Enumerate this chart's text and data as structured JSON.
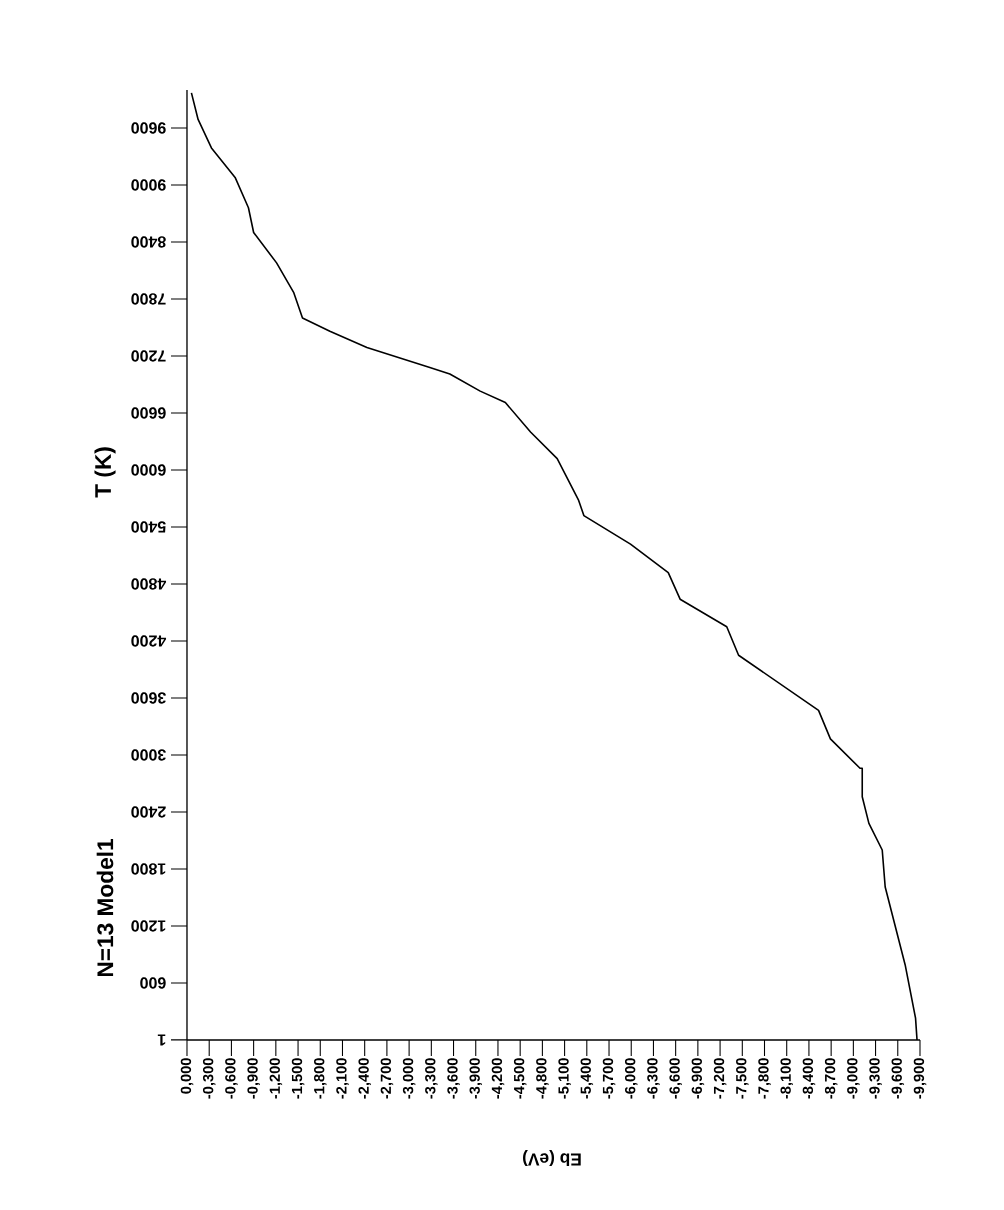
{
  "chart_data": {
    "type": "line",
    "title": "N=13 Model1",
    "xlabel": "Eb (eV)",
    "ylabel": "T (K)",
    "xlim": [
      0,
      -9.9
    ],
    "ylim": [
      0,
      10000
    ],
    "xticks": [
      {
        "value": 0,
        "label": "0,000"
      },
      {
        "value": -0.3,
        "label": "-0,300"
      },
      {
        "value": -0.6,
        "label": "-0,600"
      },
      {
        "value": -0.9,
        "label": "-0,900"
      },
      {
        "value": -1.2,
        "label": "-1,200"
      },
      {
        "value": -1.5,
        "label": "-1,500"
      },
      {
        "value": -1.8,
        "label": "-1,800"
      },
      {
        "value": -2.1,
        "label": "-2,100"
      },
      {
        "value": -2.4,
        "label": "-2,400"
      },
      {
        "value": -2.7,
        "label": "-2,700"
      },
      {
        "value": -3.0,
        "label": "-3,000"
      },
      {
        "value": -3.3,
        "label": "-3,300"
      },
      {
        "value": -3.6,
        "label": "-3,600"
      },
      {
        "value": -3.9,
        "label": "-3,900"
      },
      {
        "value": -4.2,
        "label": "-4,200"
      },
      {
        "value": -4.5,
        "label": "-4,500"
      },
      {
        "value": -4.8,
        "label": "-4,800"
      },
      {
        "value": -5.1,
        "label": "-5,100"
      },
      {
        "value": -5.4,
        "label": "-5,400"
      },
      {
        "value": -5.7,
        "label": "-5,700"
      },
      {
        "value": -6.0,
        "label": "-6,000"
      },
      {
        "value": -6.3,
        "label": "-6,300"
      },
      {
        "value": -6.6,
        "label": "-6,600"
      },
      {
        "value": -6.9,
        "label": "-6,900"
      },
      {
        "value": -7.2,
        "label": "-7,200"
      },
      {
        "value": -7.5,
        "label": "-7,500"
      },
      {
        "value": -7.8,
        "label": "-7,800"
      },
      {
        "value": -8.1,
        "label": "-8,100"
      },
      {
        "value": -8.4,
        "label": "-8,400"
      },
      {
        "value": -8.7,
        "label": "-8,700"
      },
      {
        "value": -9.0,
        "label": "-9,000"
      },
      {
        "value": -9.3,
        "label": "-9,300"
      },
      {
        "value": -9.6,
        "label": "-9,600"
      },
      {
        "value": -9.9,
        "label": "-9,900"
      }
    ],
    "yticks": [
      1,
      600,
      1200,
      1800,
      2400,
      3000,
      3600,
      4200,
      4800,
      5400,
      6000,
      6600,
      7200,
      7800,
      8400,
      9000,
      9600
    ],
    "series": [
      {
        "color": "#000000",
        "x": [
          -0.06,
          -0.15,
          -0.33,
          -0.65,
          -0.83,
          -0.9,
          -1.21,
          -1.44,
          -1.56,
          -1.93,
          -2.43,
          -3.28,
          -3.55,
          -3.96,
          -4.3,
          -4.64,
          -5.0,
          -5.29,
          -5.36,
          -5.99,
          -6.5,
          -6.66,
          -7.29,
          -7.45,
          -8.53,
          -8.69,
          -9.09,
          -9.12,
          -9.12,
          -9.21,
          -9.39,
          -9.43,
          -9.7,
          -9.84,
          -9.86
        ],
        "values": [
          9970,
          9690,
          9390,
          9080,
          8760,
          8500,
          8180,
          7870,
          7600,
          7460,
          7290,
          7080,
          7010,
          6830,
          6710,
          6400,
          6120,
          5680,
          5520,
          5220,
          4920,
          4640,
          4350,
          4050,
          3470,
          3170,
          2860,
          2860,
          2560,
          2280,
          2000,
          1610,
          790,
          230,
          0
        ]
      }
    ]
  }
}
